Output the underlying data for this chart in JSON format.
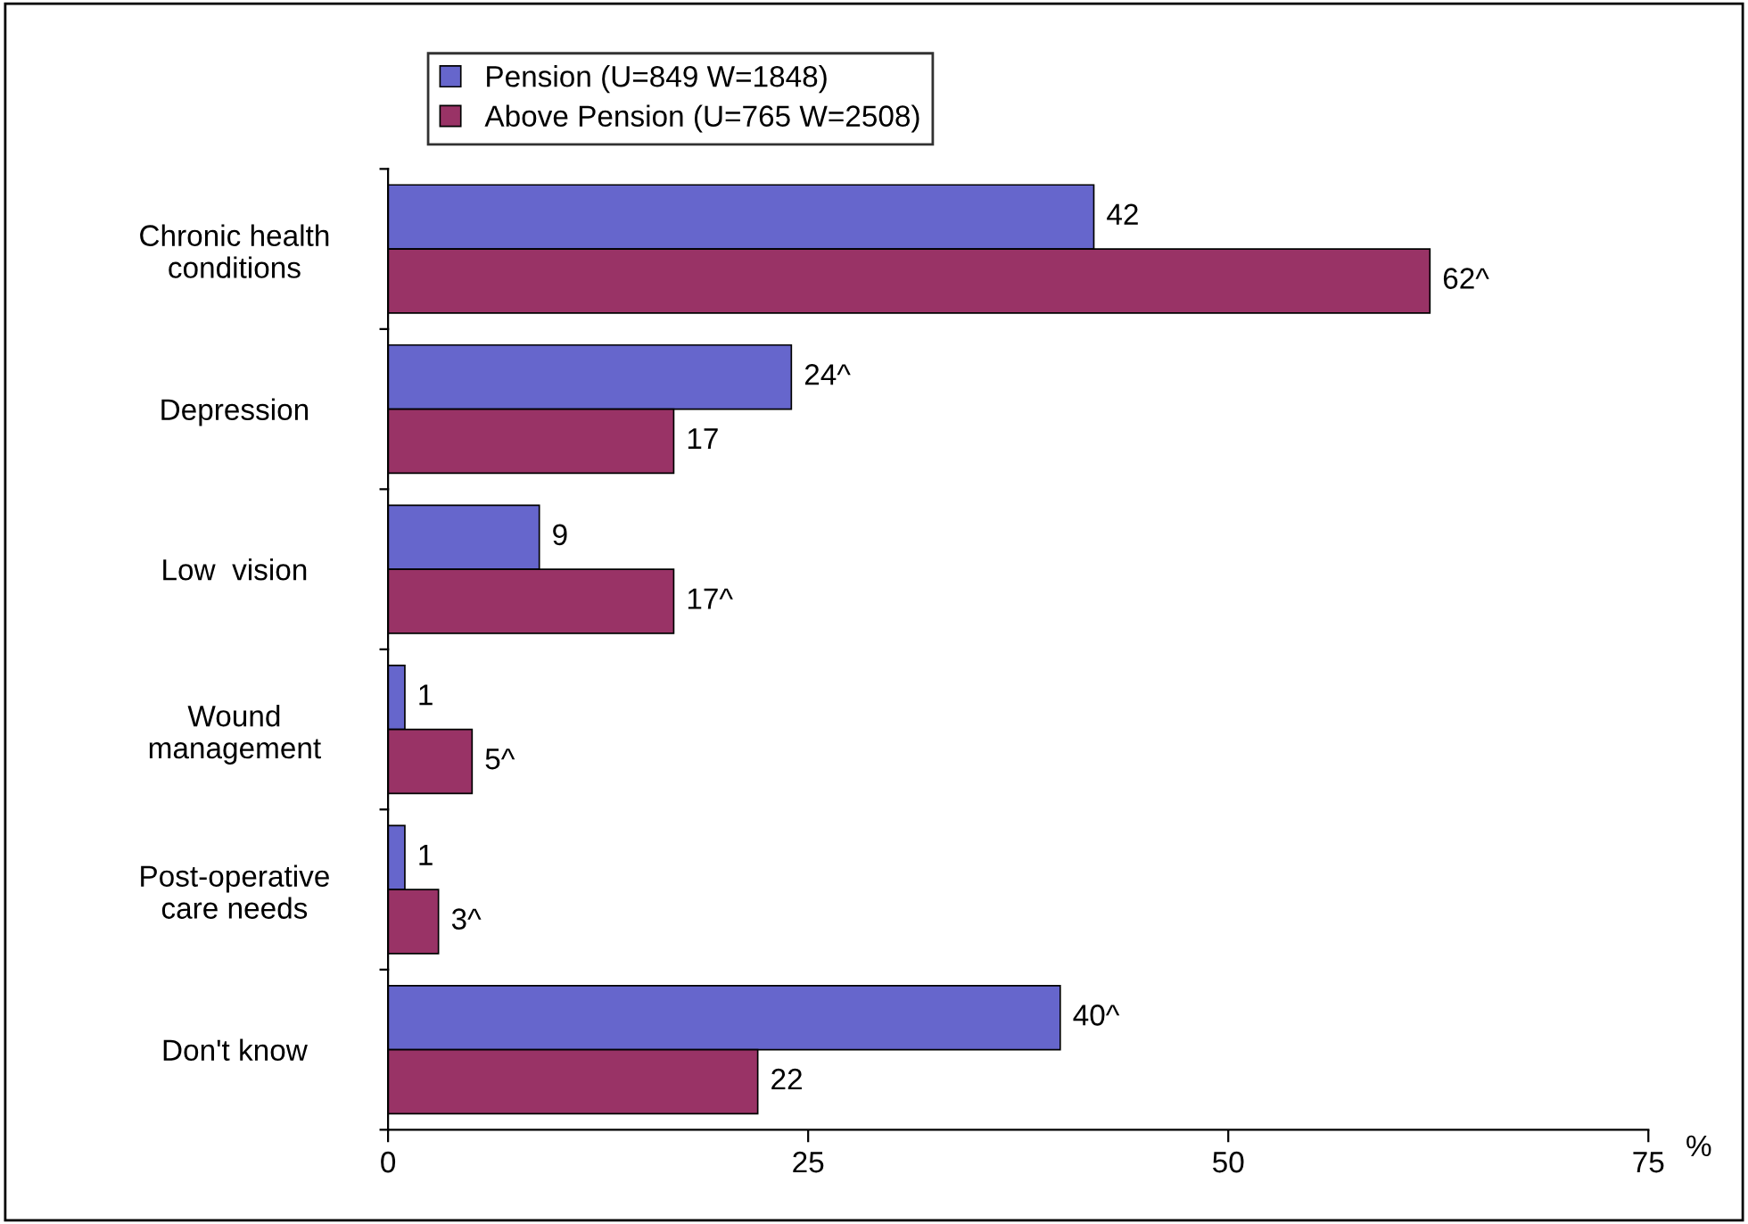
{
  "chart_data": {
    "type": "bar",
    "orientation": "horizontal",
    "xlabel": "%",
    "categories": [
      "Chronic health\nconditions",
      "Depression",
      "Low  vision",
      "Wound\nmanagement",
      "Post-operative\ncare needs",
      "Don't know"
    ],
    "series": [
      {
        "name": "Pension (U=849 W=1848)",
        "color": "#6666cc",
        "values": [
          42,
          24,
          9,
          1,
          1,
          40
        ],
        "value_labels": [
          "42",
          "24^",
          "9",
          "1",
          "1",
          "40^"
        ]
      },
      {
        "name": "Above Pension (U=765 W=2508)",
        "color": "#993366",
        "values": [
          62,
          17,
          17,
          5,
          3,
          22
        ],
        "value_labels": [
          "62^",
          "17",
          "17^",
          "5^",
          "3^",
          "22"
        ]
      }
    ],
    "xlim": [
      0,
      75
    ],
    "xticks": [
      0,
      25,
      50,
      75
    ],
    "grid": false,
    "legend": "top left"
  }
}
